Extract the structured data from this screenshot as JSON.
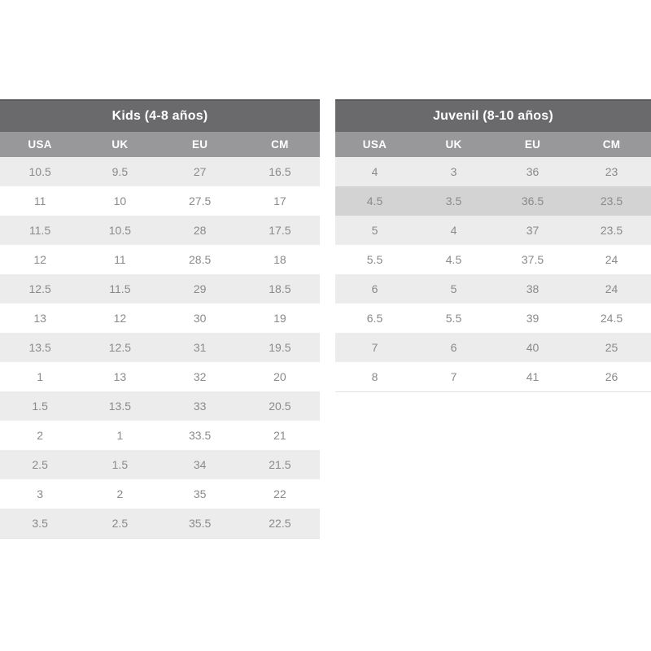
{
  "colors": {
    "title_bar_bg": "#6a6a6c",
    "title_bar_border_top": "#59595b",
    "title_text": "#ffffff",
    "column_header_bg": "#98989a",
    "column_header_text": "#ffffff",
    "row_stripe": "#ececec",
    "row_white": "#ffffff",
    "row_highlight": "#d3d3d3",
    "cell_text": "#8a8a8a",
    "table_bottom_border": "#e2e2e2"
  },
  "tables": [
    {
      "id": "kids",
      "title": "Kids (4-8 años)",
      "columns": [
        "USA",
        "UK",
        "EU",
        "CM"
      ],
      "highlight_row": null,
      "rows": [
        [
          "10.5",
          "9.5",
          "27",
          "16.5"
        ],
        [
          "11",
          "10",
          "27.5",
          "17"
        ],
        [
          "11.5",
          "10.5",
          "28",
          "17.5"
        ],
        [
          "12",
          "11",
          "28.5",
          "18"
        ],
        [
          "12.5",
          "11.5",
          "29",
          "18.5"
        ],
        [
          "13",
          "12",
          "30",
          "19"
        ],
        [
          "13.5",
          "12.5",
          "31",
          "19.5"
        ],
        [
          "1",
          "13",
          "32",
          "20"
        ],
        [
          "1.5",
          "13.5",
          "33",
          "20.5"
        ],
        [
          "2",
          "1",
          "33.5",
          "21"
        ],
        [
          "2.5",
          "1.5",
          "34",
          "21.5"
        ],
        [
          "3",
          "2",
          "35",
          "22"
        ],
        [
          "3.5",
          "2.5",
          "35.5",
          "22.5"
        ]
      ]
    },
    {
      "id": "juvenil",
      "title": "Juvenil (8-10 años)",
      "columns": [
        "USA",
        "UK",
        "EU",
        "CM"
      ],
      "highlight_row": 1,
      "rows": [
        [
          "4",
          "3",
          "36",
          "23"
        ],
        [
          "4.5",
          "3.5",
          "36.5",
          "23.5"
        ],
        [
          "5",
          "4",
          "37",
          "23.5"
        ],
        [
          "5.5",
          "4.5",
          "37.5",
          "24"
        ],
        [
          "6",
          "5",
          "38",
          "24"
        ],
        [
          "6.5",
          "5.5",
          "39",
          "24.5"
        ],
        [
          "7",
          "6",
          "40",
          "25"
        ],
        [
          "8",
          "7",
          "41",
          "26"
        ]
      ]
    }
  ]
}
